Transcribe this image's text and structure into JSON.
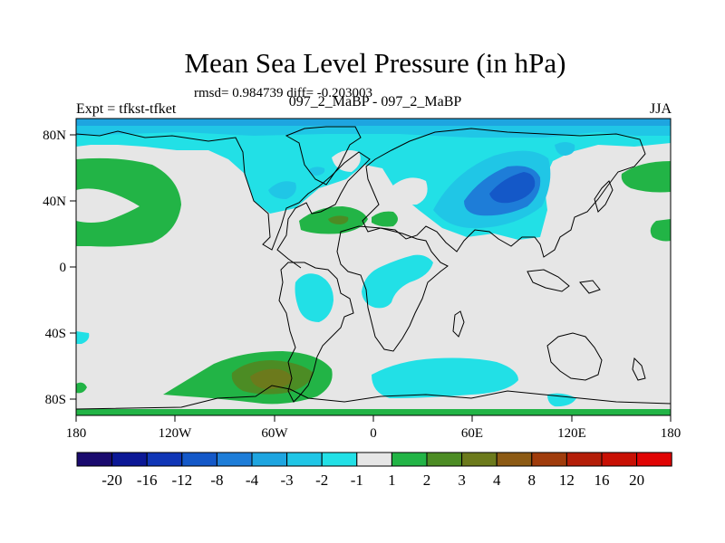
{
  "title": "Mean Sea Level Pressure (in hPa)",
  "subtitle": "rmsd= 0.984739 diff= -0.203003",
  "left_string": "Expt = tfkst-tfket",
  "center_string": "097_2_MaBP - 097_2_MaBP",
  "right_string": "JJA",
  "map": {
    "lon_ticks": [
      "180",
      "120W",
      "60W",
      "0",
      "60E",
      "120E",
      "180"
    ],
    "lat_ticks": [
      "80N",
      "40N",
      "0",
      "40S",
      "80S"
    ]
  },
  "colorbar": {
    "labels": [
      "-20",
      "-16",
      "-12",
      "-8",
      "-4",
      "-3",
      "-2",
      "-1",
      "1",
      "2",
      "3",
      "4",
      "8",
      "12",
      "16",
      "20"
    ],
    "colors": [
      "#1a0a6e",
      "#0c1896",
      "#1036b6",
      "#1458c8",
      "#1e7dd8",
      "#1ea5e0",
      "#20c6e6",
      "#22e0e6",
      "#e6e6e6",
      "#22b446",
      "#4c8c24",
      "#6c7a1c",
      "#8c5a14",
      "#a03c0c",
      "#b41e08",
      "#c81004",
      "#e00404"
    ]
  }
}
